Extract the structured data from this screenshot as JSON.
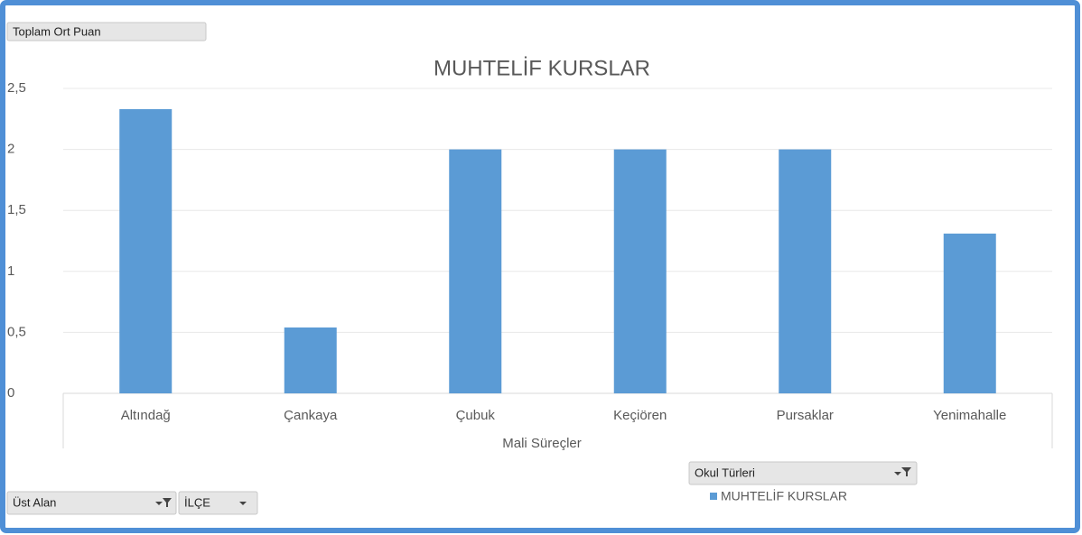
{
  "chart_data": {
    "type": "bar",
    "title": "MUHTELİF KURSLAR",
    "x_label": "Mali Süreçler",
    "value_field_button": "Toplam Ort Puan",
    "legend_field_button": "Okul Türleri",
    "filter_buttons": [
      "Üst Alan",
      "İLÇE"
    ],
    "categories": [
      "Altındağ",
      "Çankaya",
      "Çubuk",
      "Keçiören",
      "Pursaklar",
      "Yenimahalle"
    ],
    "series": [
      {
        "name": "MUHTELİF KURSLAR",
        "color": "#5b9bd5",
        "values": [
          2.33,
          0.54,
          2,
          2,
          2,
          1.31
        ]
      }
    ],
    "ylim": [
      0,
      2.5
    ],
    "yticks": [
      0,
      {
        "value": 0.5,
        "label": "0,5"
      },
      1,
      {
        "value": 1.5,
        "label": "1,5"
      },
      2,
      {
        "value": 2.5,
        "label": "2,5"
      }
    ],
    "grid": true
  }
}
